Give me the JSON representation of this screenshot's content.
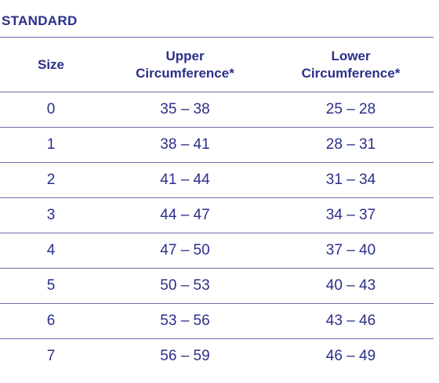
{
  "section_title": "STANDARD",
  "table": {
    "headers": {
      "size": "Size",
      "upper_line1": "Upper",
      "upper_line2": "Circumference*",
      "lower_line1": "Lower",
      "lower_line2": "Circumference*"
    },
    "rows": [
      {
        "size": "0",
        "upper": "35 – 38",
        "lower": "25 – 28"
      },
      {
        "size": "1",
        "upper": "38 – 41",
        "lower": "28 – 31"
      },
      {
        "size": "2",
        "upper": "41 – 44",
        "lower": "31 – 34"
      },
      {
        "size": "3",
        "upper": "44 – 47",
        "lower": "34 – 37"
      },
      {
        "size": "4",
        "upper": "47 – 50",
        "lower": "37 – 40"
      },
      {
        "size": "5",
        "upper": "50 – 53",
        "lower": "40 – 43"
      },
      {
        "size": "6",
        "upper": "53 – 56",
        "lower": "43 – 46"
      },
      {
        "size": "7",
        "upper": "56 – 59",
        "lower": "46 – 49"
      }
    ]
  },
  "colors": {
    "text": "#2b2f8a",
    "rule": "#6b6fa8"
  }
}
